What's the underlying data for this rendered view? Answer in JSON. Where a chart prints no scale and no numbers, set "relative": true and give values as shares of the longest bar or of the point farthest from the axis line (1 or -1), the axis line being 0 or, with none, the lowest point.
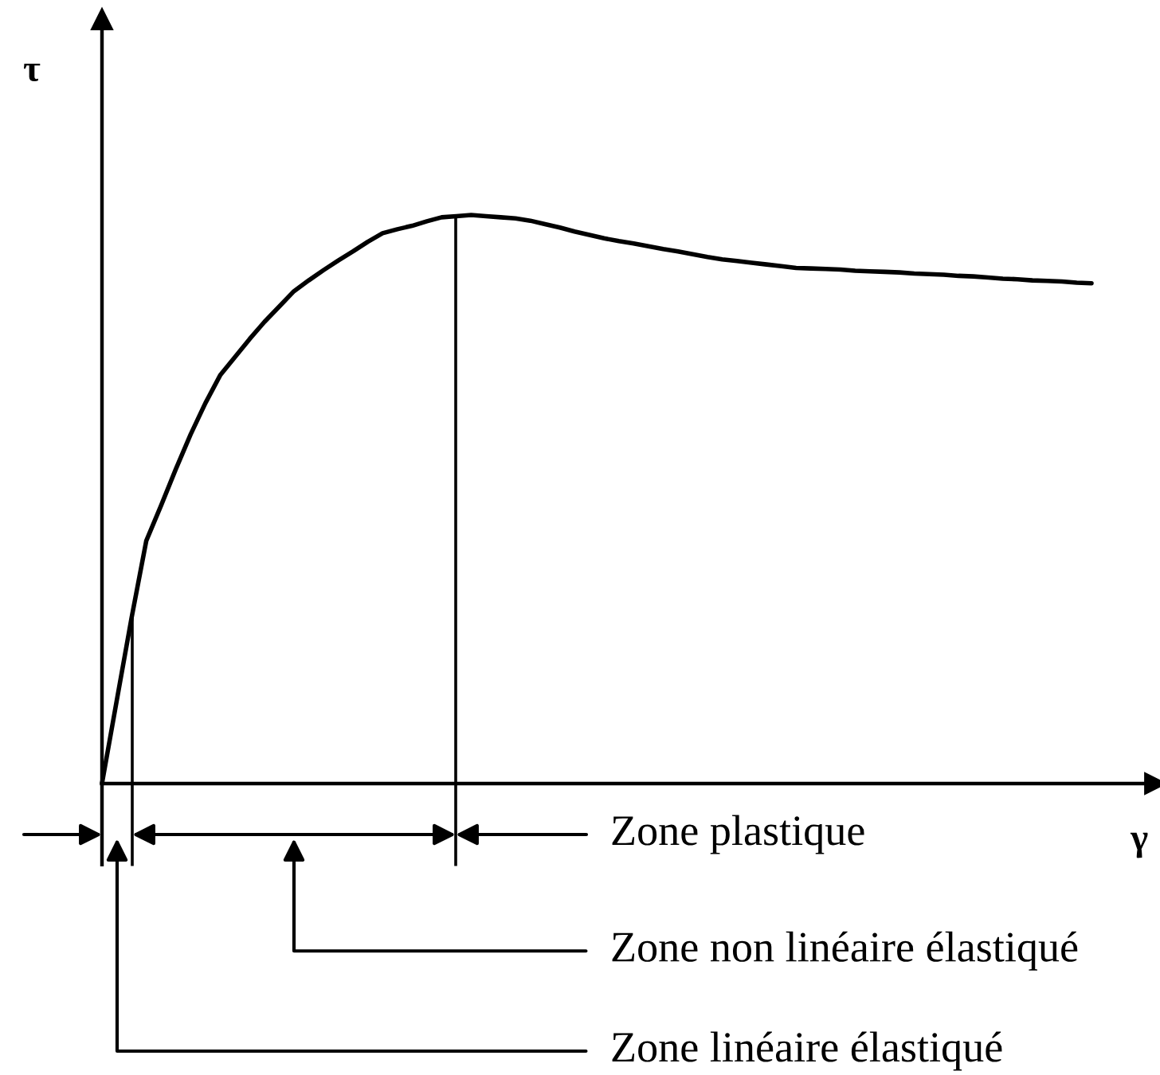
{
  "chart_data": {
    "type": "line",
    "xlabel": "γ",
    "ylabel": "τ",
    "relative": true,
    "categories": [
      null,
      null,
      null,
      null,
      null,
      null,
      null,
      null,
      null,
      null,
      null,
      null,
      null,
      null,
      null,
      null,
      null,
      null,
      null,
      null,
      null,
      null,
      null,
      null,
      null,
      null,
      null,
      null,
      null,
      null,
      null,
      null,
      null,
      null,
      null,
      null,
      null,
      null,
      null,
      null,
      null,
      null,
      null,
      null,
      null,
      null,
      null,
      null,
      null,
      null,
      null,
      null,
      null,
      null,
      null,
      null,
      null,
      null,
      null,
      null,
      null,
      null,
      null,
      null,
      null,
      null,
      null,
      null
    ],
    "series": [
      {
        "color": "#000000",
        "values": [
          0,
          0.146,
          0.291,
          0.427,
          0.489,
          0.553,
          0.614,
          0.669,
          0.718,
          0.75,
          0.782,
          0.812,
          0.839,
          0.866,
          0.885,
          0.903,
          0.92,
          0.936,
          0.953,
          0.968,
          0.975,
          0.981,
          0.989,
          0.996,
          0.998,
          1,
          0.998,
          0.996,
          0.994,
          0.99,
          0.984,
          0.978,
          0.971,
          0.965,
          0.959,
          0.954,
          0.95,
          0.945,
          0.94,
          0.936,
          0.931,
          0.926,
          0.922,
          0.919,
          0.916,
          0.913,
          0.91,
          0.907,
          0.906,
          0.905,
          0.904,
          0.902,
          0.901,
          0.9,
          0.899,
          0.897,
          0.896,
          0.895,
          0.893,
          0.892,
          0.89,
          0.888,
          0.887,
          0.885,
          0.884,
          0.883,
          0.881,
          0.88
        ]
      }
    ],
    "annotations": [
      "Zone plastique",
      "Zone non linéaire élastiqué",
      "Zone linéaire élastiqué"
    ]
  }
}
